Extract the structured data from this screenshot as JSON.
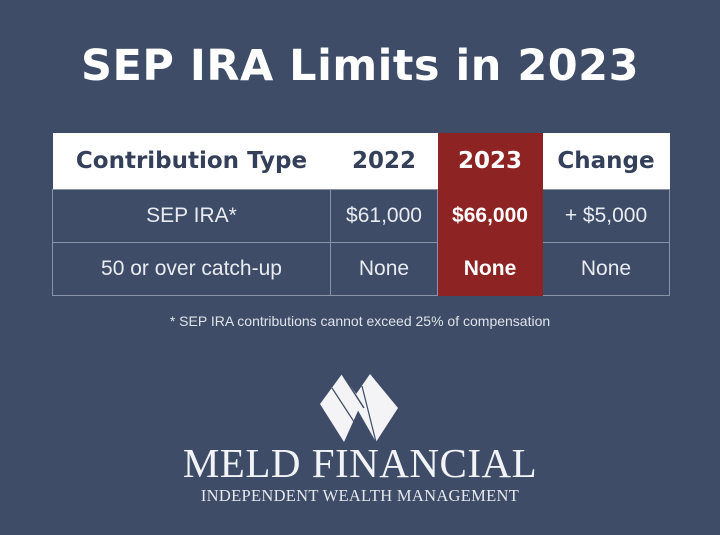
{
  "title": "SEP IRA Limits in 2023",
  "table": {
    "headers": [
      "Contribution Type",
      "2022",
      "2023",
      "Change"
    ],
    "rows": [
      [
        "SEP IRA*",
        "$61,000",
        "$66,000",
        "+ $5,000"
      ],
      [
        "50 or over catch-up",
        "None",
        "None",
        "None"
      ]
    ],
    "highlight_column": "2023"
  },
  "footnote": "* SEP IRA contributions cannot exceed 25% of compensation",
  "logo": {
    "name": "MELD FINANCIAL",
    "tagline": "INDEPENDENT WEALTH MANAGEMENT"
  },
  "colors": {
    "background": "#3e4c67",
    "highlight": "#8e2323",
    "header_bg": "#ffffff"
  }
}
